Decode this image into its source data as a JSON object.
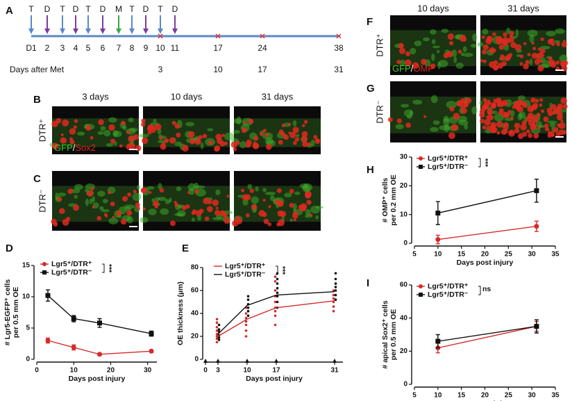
{
  "panel_labels": [
    "A",
    "B",
    "C",
    "D",
    "E",
    "F",
    "G",
    "H",
    "I"
  ],
  "timeline": {
    "days": [
      {
        "label": "D1",
        "event": "T"
      },
      {
        "label": "2",
        "event": "D"
      },
      {
        "label": "3",
        "event": "T"
      },
      {
        "label": "4",
        "event": "D"
      },
      {
        "label": "5",
        "event": "T"
      },
      {
        "label": "6",
        "event": "D"
      },
      {
        "label": "7",
        "event": "M"
      },
      {
        "label": "8",
        "event": "T"
      },
      {
        "label": "9",
        "event": "D"
      },
      {
        "label": "10",
        "event": "T",
        "met_day": "3"
      },
      {
        "label": "11",
        "event": "D"
      },
      {
        "label": "17",
        "met_day": "10"
      },
      {
        "label": "24",
        "met_day": "17"
      },
      {
        "label": "38",
        "met_day": "31"
      }
    ],
    "event_colors": {
      "T": "#5a88c4",
      "D": "#7a3d9c",
      "M": "#3aa845"
    },
    "met_label": "Days after Met"
  },
  "micrographs": [
    {
      "columns": [
        "3 days",
        "10 days",
        "31 days"
      ],
      "rows": [
        "DTR⁺",
        "DTR⁻"
      ],
      "stain": [
        "GFP",
        "/",
        "Sox2"
      ]
    },
    {
      "columns": [
        "10 days",
        "31 days"
      ],
      "rows": [
        "DTR⁺",
        "DTR⁻"
      ],
      "stain": [
        "GFP",
        "/",
        "OMP"
      ]
    }
  ],
  "chart_data": [
    {
      "type": "line",
      "x_label": "Days post injury",
      "y_label": [
        "# Lgr5-EGFP⁺ cells",
        "per 0.5 mm OE"
      ],
      "xlim": [
        0,
        32.5
      ],
      "xticks": [
        0,
        10,
        20,
        30
      ],
      "ylim": [
        0,
        15
      ],
      "yticks": [
        0,
        5,
        10,
        15
      ],
      "significance": "***",
      "series": [
        {
          "name": "Lgr5⁺/DTR⁺",
          "color": "#d42b2b",
          "marker": "circle",
          "x": [
            3,
            10,
            17,
            31
          ],
          "values": [
            3.0,
            1.9,
            0.8,
            1.3
          ],
          "errors": [
            0.4,
            0.4,
            0.2,
            0.2
          ]
        },
        {
          "name": "Lgr5⁺/DTR⁻",
          "color": "#111111",
          "marker": "square",
          "x": [
            3,
            10,
            17,
            31
          ],
          "values": [
            10.2,
            6.5,
            5.8,
            4.1
          ],
          "errors": [
            0.9,
            0.5,
            0.7,
            0.4
          ]
        }
      ]
    },
    {
      "type": "line",
      "x_label": "Days post injury",
      "y_label": [
        "OE thickness (µm)"
      ],
      "xlim": [
        0,
        33
      ],
      "xticks": [
        0,
        3,
        10,
        17,
        31
      ],
      "ylim": [
        0,
        80
      ],
      "yticks": [
        0,
        20,
        40,
        60,
        80
      ],
      "significance": "***",
      "series": [
        {
          "name": "Lgr5⁺/DTR⁺",
          "color": "#d42b2b",
          "marker": "none",
          "x": [
            3,
            10,
            17,
            31
          ],
          "values": [
            20,
            35,
            45,
            51
          ]
        },
        {
          "name": "Lgr5⁺/DTR⁻",
          "color": "#111111",
          "marker": "none",
          "x": [
            3,
            10,
            17,
            31
          ],
          "values": [
            22,
            47,
            56,
            59
          ]
        }
      ],
      "points": [
        {
          "color": "#d42b2b",
          "x": [
            3,
            3,
            3,
            3,
            3,
            3,
            3,
            3,
            10,
            10,
            10,
            10,
            10,
            10,
            10,
            17,
            17,
            17,
            17,
            17,
            17,
            17,
            17,
            17,
            31,
            31,
            31,
            31,
            31,
            31
          ],
          "values": [
            15,
            18,
            20,
            22,
            25,
            28,
            32,
            35,
            20,
            25,
            30,
            33,
            36,
            40,
            45,
            30,
            38,
            42,
            45,
            50,
            55,
            60,
            68,
            72,
            42,
            46,
            50,
            53,
            56,
            60
          ]
        },
        {
          "color": "#111111",
          "x": [
            3,
            3,
            3,
            3,
            3,
            3,
            10,
            10,
            10,
            10,
            10,
            10,
            17,
            17,
            17,
            17,
            17,
            17,
            17,
            17,
            31,
            31,
            31,
            31,
            31,
            31,
            31
          ],
          "values": [
            17,
            19,
            21,
            24,
            26,
            30,
            38,
            42,
            45,
            48,
            52,
            55,
            45,
            50,
            55,
            58,
            62,
            66,
            70,
            75,
            52,
            56,
            60,
            63,
            66,
            70,
            75
          ]
        }
      ]
    },
    {
      "type": "line",
      "x_label": "Days post injury",
      "y_label": [
        "# OMP⁺ cells",
        "per 0.2 mm OE"
      ],
      "xlim": [
        5,
        35
      ],
      "xticks": [
        5,
        10,
        15,
        20,
        25,
        30,
        35
      ],
      "ylim": [
        0,
        30
      ],
      "yticks": [
        0,
        10,
        20,
        30
      ],
      "significance": "***",
      "series": [
        {
          "name": "Lgr5⁺/DTR⁺",
          "color": "#d42b2b",
          "marker": "circle",
          "x": [
            10,
            31
          ],
          "values": [
            1.3,
            5.9
          ],
          "errors": [
            1.5,
            1.8
          ]
        },
        {
          "name": "Lgr5⁺/DTR⁻",
          "color": "#111111",
          "marker": "square",
          "x": [
            10,
            31
          ],
          "values": [
            10.5,
            18.3
          ],
          "errors": [
            4,
            4
          ]
        }
      ]
    },
    {
      "type": "line",
      "x_label": "Days post injury",
      "y_label": [
        "# apical Sox2⁺ cells",
        "per 0.5 mm OE"
      ],
      "xlim": [
        5,
        35
      ],
      "xticks": [
        5,
        10,
        15,
        20,
        25,
        30,
        35
      ],
      "ylim": [
        0,
        60
      ],
      "yticks": [
        0,
        20,
        40,
        60
      ],
      "significance": "ns",
      "series": [
        {
          "name": "Lgr5⁺/DTR⁺",
          "color": "#d42b2b",
          "marker": "circle",
          "x": [
            10,
            31
          ],
          "values": [
            22,
            35
          ],
          "errors": [
            3,
            3
          ]
        },
        {
          "name": "Lgr5⁺/DTR⁻",
          "color": "#111111",
          "marker": "square",
          "x": [
            10,
            31
          ],
          "values": [
            26,
            35
          ],
          "errors": [
            4,
            4
          ]
        }
      ]
    }
  ]
}
